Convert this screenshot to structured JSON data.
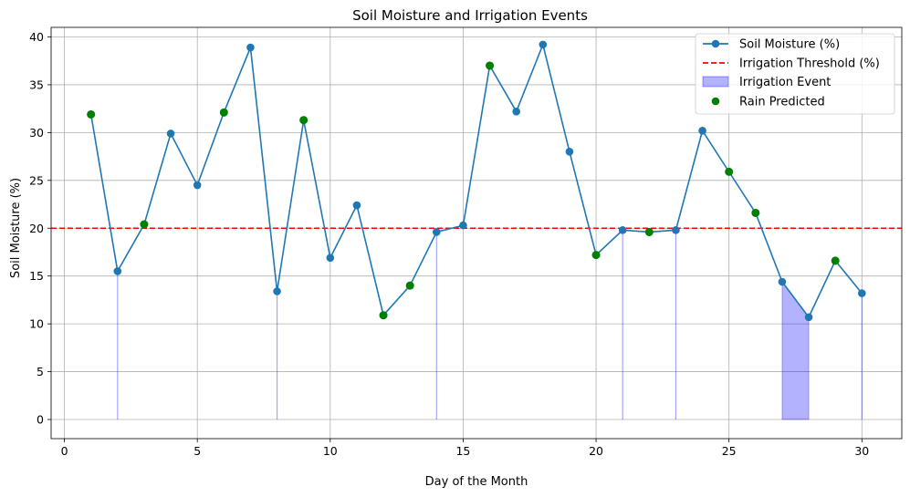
{
  "chart_data": {
    "type": "line",
    "title": "Soil Moisture and Irrigation Events",
    "xlabel": "Day of the Month",
    "ylabel": "Soil Moisture (%)",
    "xlim": [
      -0.5,
      31.5
    ],
    "ylim": [
      -2,
      41
    ],
    "xticks": [
      0,
      5,
      10,
      15,
      20,
      25,
      30
    ],
    "yticks": [
      0,
      5,
      10,
      15,
      20,
      25,
      30,
      35,
      40
    ],
    "grid": true,
    "legend_position": "top-right",
    "threshold": 20,
    "series": [
      {
        "name": "Soil Moisture (%)",
        "color": "#1f77b4",
        "x": [
          1,
          2,
          3,
          4,
          5,
          6,
          7,
          8,
          9,
          10,
          11,
          12,
          13,
          14,
          15,
          16,
          17,
          18,
          19,
          20,
          21,
          22,
          23,
          24,
          25,
          26,
          27,
          28,
          29,
          30
        ],
        "values": [
          31.9,
          15.5,
          20.4,
          29.9,
          24.5,
          32.1,
          38.9,
          13.4,
          31.3,
          16.9,
          22.4,
          10.9,
          14.0,
          19.6,
          20.3,
          37.0,
          32.2,
          39.2,
          28.0,
          17.2,
          19.8,
          19.6,
          19.8,
          30.2,
          25.9,
          21.6,
          14.4,
          10.7,
          16.6,
          13.2
        ]
      }
    ],
    "threshold_series": {
      "name": "Irrigation Threshold (%)",
      "color": "#ff0000",
      "value": 20
    },
    "irrigation_series": {
      "name": "Irrigation Event",
      "color": "#0000ff",
      "days": [
        2,
        8,
        14,
        21,
        23,
        27,
        28,
        30
      ]
    },
    "rain_series": {
      "name": "Rain Predicted",
      "color": "#008000",
      "days": [
        1,
        3,
        6,
        9,
        12,
        13,
        16,
        20,
        22,
        25,
        26,
        29
      ]
    }
  }
}
